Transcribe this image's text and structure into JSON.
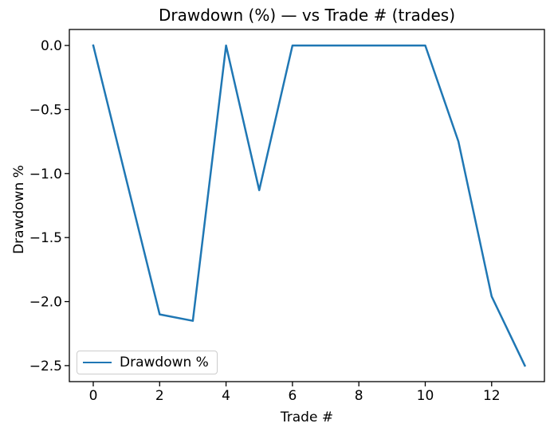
{
  "chart_data": {
    "type": "line",
    "title": "Drawdown (%) — vs Trade # (trades)",
    "xlabel": "Trade #",
    "ylabel": "Drawdown %",
    "x": [
      0,
      1,
      2,
      3,
      4,
      5,
      6,
      7,
      8,
      9,
      10,
      11,
      12,
      13
    ],
    "series": [
      {
        "name": "Drawdown %",
        "color": "#1f77b4",
        "values": [
          0.0,
          -1.05,
          -2.1,
          -2.15,
          0.0,
          -1.13,
          0.0,
          0.0,
          0.0,
          0.0,
          0.0,
          -0.75,
          -1.96,
          -2.5
        ]
      }
    ],
    "xlim": [
      -0.72,
      13.59
    ],
    "ylim": [
      -2.625,
      0.125
    ],
    "xticks": {
      "values": [
        0,
        2,
        4,
        6,
        8,
        10,
        12
      ],
      "labels": [
        "0",
        "2",
        "4",
        "6",
        "8",
        "10",
        "12"
      ]
    },
    "yticks": {
      "values": [
        0.0,
        -0.5,
        -1.0,
        -1.5,
        -2.0,
        -2.5
      ],
      "labels": [
        "0.0",
        "−0.5",
        "−1.0",
        "−1.5",
        "−2.0",
        "−2.5"
      ]
    },
    "grid": false,
    "legend": {
      "visible": true,
      "position": "lower left",
      "entries": [
        "Drawdown %"
      ]
    },
    "figure_facecolor": "#ffffff",
    "axes_facecolor": "#ffffff",
    "spine_color": "#000000",
    "text_color": "#000000"
  }
}
